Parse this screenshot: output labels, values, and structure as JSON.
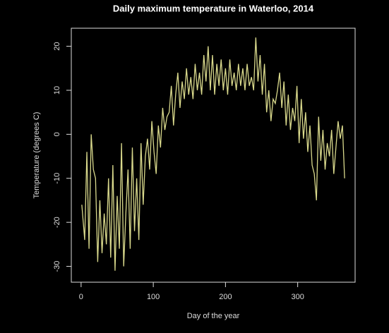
{
  "chart_data": {
    "type": "line",
    "title": "Daily maximum temperature in Waterloo, 2014",
    "x_label": "Day of the year",
    "y_label": "Temperature (degrees C)",
    "x": [
      1,
      5,
      8,
      11,
      14,
      17,
      20,
      23,
      26,
      29,
      32,
      35,
      38,
      41,
      44,
      47,
      50,
      53,
      56,
      59,
      62,
      65,
      68,
      71,
      74,
      77,
      80,
      83,
      86,
      89,
      92,
      95,
      98,
      101,
      104,
      107,
      110,
      113,
      116,
      119,
      122,
      125,
      128,
      131,
      134,
      137,
      140,
      143,
      146,
      149,
      152,
      155,
      158,
      161,
      164,
      167,
      170,
      173,
      176,
      179,
      182,
      185,
      188,
      191,
      194,
      197,
      200,
      203,
      206,
      209,
      212,
      215,
      218,
      221,
      224,
      227,
      230,
      233,
      236,
      239,
      242,
      245,
      248,
      251,
      254,
      257,
      260,
      263,
      266,
      269,
      272,
      275,
      278,
      281,
      284,
      287,
      290,
      293,
      296,
      299,
      302,
      305,
      308,
      311,
      314,
      317,
      320,
      323,
      326,
      329,
      332,
      335,
      338,
      341,
      344,
      347,
      350,
      353,
      356,
      359,
      362,
      365
    ],
    "series": [
      {
        "name": "Temperature",
        "color": "#d9d98c",
        "values": [
          -16,
          -24,
          -4,
          -26,
          0,
          -8,
          -10,
          -29,
          -15,
          -27,
          -18,
          -25,
          -10,
          -28,
          -7,
          -31,
          -14,
          -26,
          -2,
          -30,
          -18,
          -8,
          -26,
          -3,
          -22,
          -10,
          -24,
          -2,
          -16,
          -5,
          -1,
          -8,
          3,
          -4,
          -9,
          2,
          -3,
          6,
          1,
          4,
          5,
          11,
          2,
          9,
          14,
          6,
          12,
          8,
          15,
          9,
          13,
          8,
          16,
          10,
          14,
          9,
          18,
          12,
          20,
          10,
          18,
          9,
          16,
          11,
          17,
          10,
          15,
          9,
          17,
          11,
          14,
          10,
          16,
          11,
          15,
          10,
          16,
          11,
          13,
          10,
          22,
          12,
          18,
          9,
          16,
          5,
          10,
          3,
          8,
          7,
          10,
          14,
          6,
          12,
          2,
          9,
          1,
          6,
          3,
          11,
          -2,
          8,
          -1,
          5,
          -4,
          2,
          -7,
          -9,
          -15,
          4,
          -6,
          1,
          -8,
          -2,
          -5,
          1,
          -9,
          -3,
          3,
          -1,
          2,
          -10
        ]
      }
    ],
    "xlim": [
      -13.56,
      379.56
    ],
    "ylim": [
      -33.6,
      24.1
    ],
    "xticks": [
      0,
      100,
      200,
      300
    ],
    "yticks": [
      -30,
      -20,
      -10,
      0,
      10,
      20
    ]
  }
}
